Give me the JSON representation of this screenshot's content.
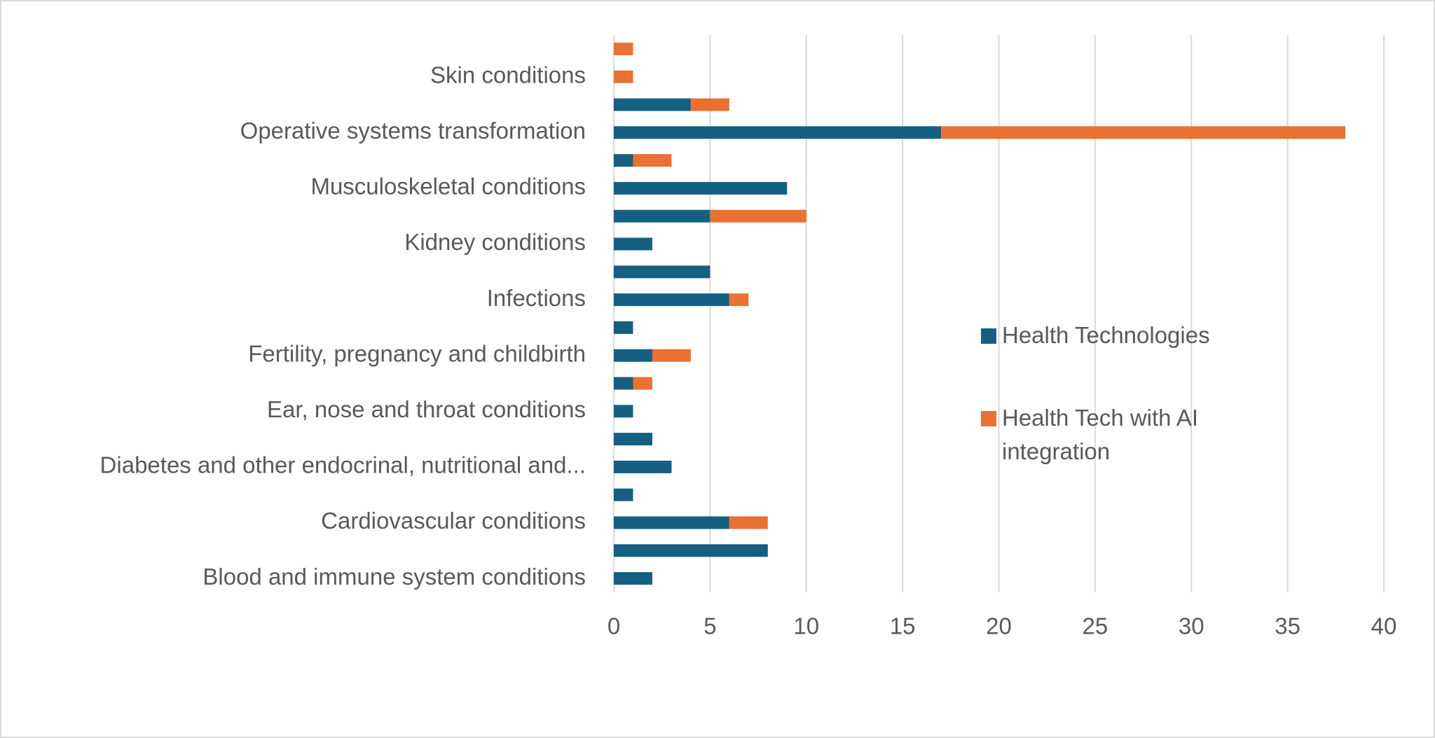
{
  "chart_data": {
    "type": "stacked-bar-horizontal",
    "categories": [
      "Blood and immune system conditions",
      null,
      "Cardiovascular conditions",
      null,
      "Diabetes and other endocrinal, nutritional and...",
      null,
      "Ear, nose and throat conditions",
      null,
      "Fertility, pregnancy and childbirth",
      null,
      "Infections",
      null,
      "Kidney conditions",
      null,
      "Musculoskeletal conditions",
      null,
      "Operative systems transformation",
      null,
      "Skin conditions",
      null
    ],
    "series": [
      {
        "name": "Health Technologies",
        "color": "#156082",
        "values": [
          2,
          8,
          6,
          1,
          3,
          2,
          1,
          1,
          2,
          1,
          6,
          5,
          2,
          5,
          9,
          1,
          17,
          4,
          0,
          0
        ]
      },
      {
        "name": "Health Tech with AI integration",
        "color": "#e97132",
        "values": [
          0,
          0,
          2,
          0,
          0,
          0,
          0,
          1,
          2,
          0,
          1,
          0,
          0,
          5,
          0,
          2,
          21,
          2,
          1,
          1
        ]
      }
    ],
    "xlim": [
      0,
      40
    ],
    "xticks": [
      0,
      5,
      10,
      15,
      20,
      25,
      30,
      35,
      40
    ],
    "grid": true,
    "legend": "right"
  }
}
